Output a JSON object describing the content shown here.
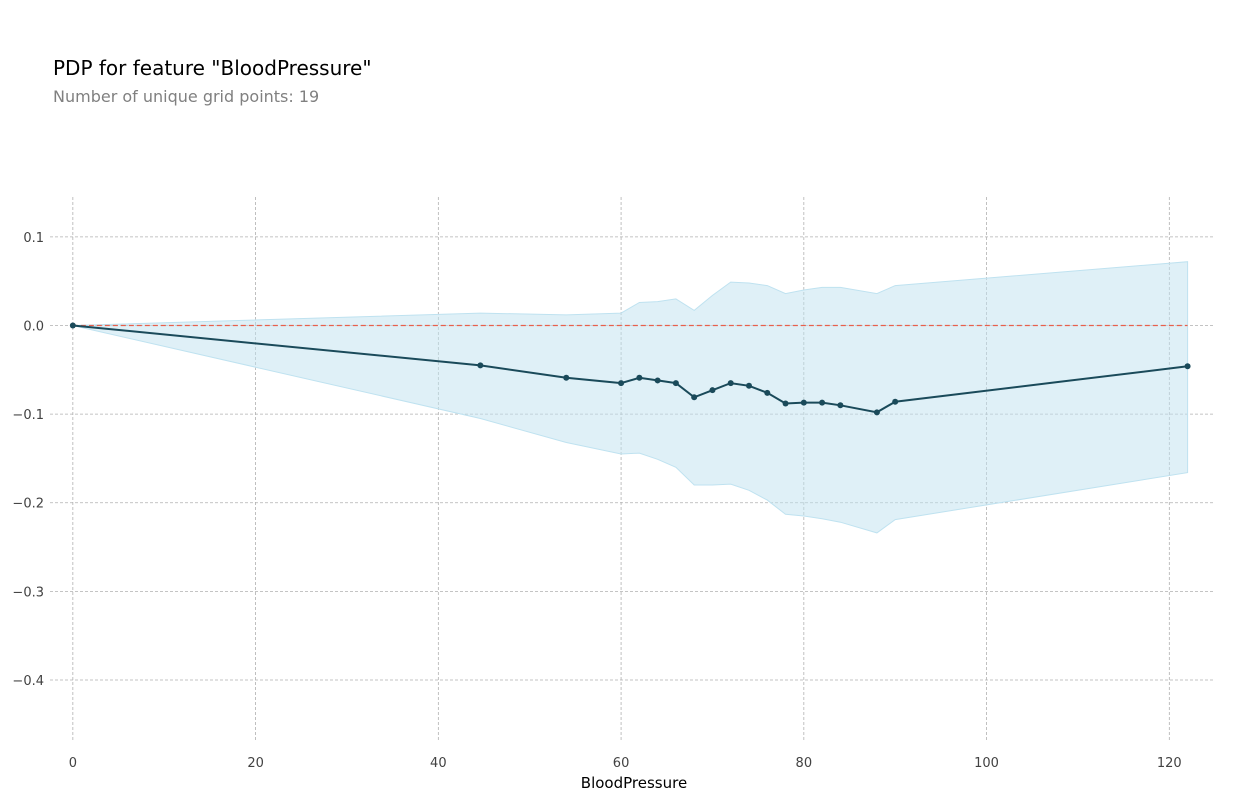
{
  "chart_data": {
    "type": "line",
    "title": "PDP for feature \"BloodPressure\"",
    "subtitle": "Number of unique grid points: 19",
    "xlabel": "BloodPressure",
    "ylabel": "",
    "xlim": [
      -2.5,
      125.0
    ],
    "ylim": [
      -0.47,
      0.145
    ],
    "xticks": [
      0,
      20,
      40,
      60,
      80,
      100,
      120
    ],
    "yticks": [
      -0.4,
      -0.3,
      -0.2,
      -0.1,
      0.0,
      0.1
    ],
    "grid": true,
    "reference_line_y": 0.0,
    "series": [
      {
        "x": [
          0,
          44.6,
          54,
          60,
          62,
          64,
          66,
          68,
          70,
          72,
          74,
          76,
          78,
          80,
          82,
          84,
          88,
          90,
          122
        ],
        "y": [
          0.0,
          -0.045,
          -0.059,
          -0.065,
          -0.059,
          -0.062,
          -0.065,
          -0.081,
          -0.073,
          -0.065,
          -0.068,
          -0.076,
          -0.088,
          -0.087,
          -0.087,
          -0.09,
          -0.098,
          -0.086,
          -0.046
        ]
      }
    ],
    "band": {
      "x": [
        0,
        44.6,
        54,
        60,
        62,
        64,
        66,
        68,
        70,
        72,
        74,
        76,
        78,
        80,
        82,
        84,
        88,
        90,
        122
      ],
      "upper": [
        0.0,
        0.014,
        0.012,
        0.014,
        0.026,
        0.027,
        0.03,
        0.017,
        0.034,
        0.049,
        0.048,
        0.045,
        0.036,
        0.04,
        0.043,
        0.043,
        0.036,
        0.045,
        0.072
      ],
      "lower": [
        0.0,
        -0.105,
        -0.132,
        -0.145,
        -0.144,
        -0.151,
        -0.16,
        -0.18,
        -0.18,
        -0.179,
        -0.186,
        -0.197,
        -0.213,
        -0.215,
        -0.218,
        -0.222,
        -0.234,
        -0.219,
        -0.166
      ]
    },
    "colors": {
      "line": "#1a4a5a",
      "band": "#bfe2f0",
      "reference": "#e8604c",
      "grid": "#b0b0b0",
      "ticks": "#424242"
    }
  }
}
